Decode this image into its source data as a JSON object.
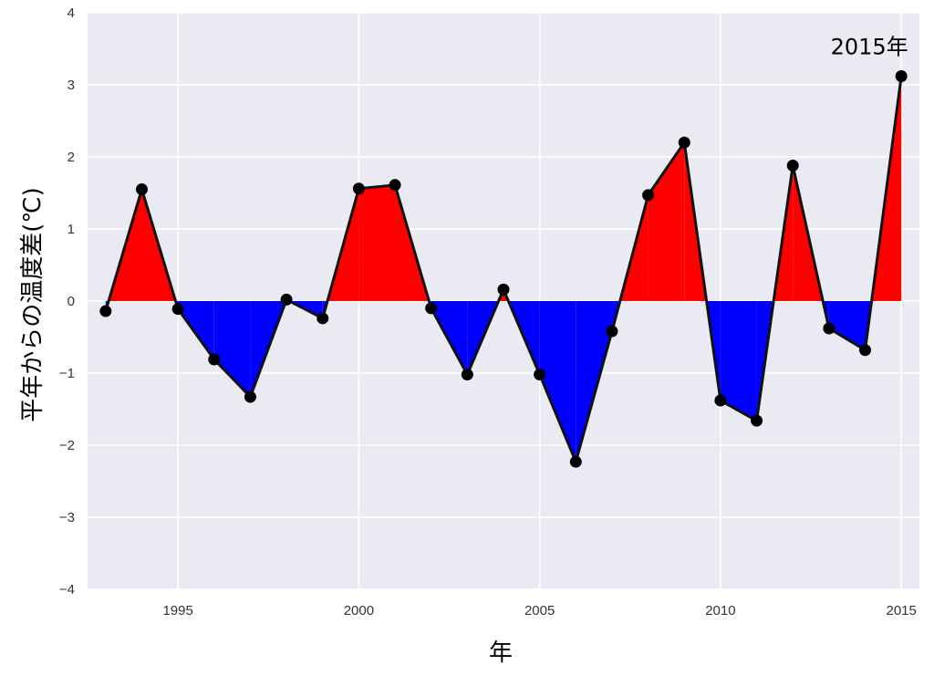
{
  "chart_data": {
    "type": "line",
    "title": "",
    "xlabel": "年",
    "ylabel": "平年からの温度差(℃)",
    "x": [
      1993,
      1994,
      1995,
      1996,
      1997,
      1998,
      1999,
      2000,
      2001,
      2002,
      2003,
      2004,
      2005,
      2006,
      2007,
      2008,
      2009,
      2010,
      2011,
      2012,
      2013,
      2014,
      2015
    ],
    "series": [
      {
        "values": [
          -0.14,
          1.55,
          -0.11,
          -0.81,
          -1.33,
          0.02,
          -0.24,
          1.56,
          1.61,
          -0.1,
          -1.02,
          0.16,
          -1.02,
          -2.23,
          -0.42,
          1.47,
          2.2,
          -1.38,
          -1.66,
          1.88,
          -0.38,
          -0.68,
          3.12
        ]
      }
    ],
    "xlim": [
      1992.5,
      2015.5
    ],
    "ylim": [
      -4,
      4
    ],
    "x_ticks": [
      1995,
      2000,
      2005,
      2010,
      2015
    ],
    "y_ticks": [
      -4,
      -3,
      -2,
      -1,
      0,
      1,
      2,
      3,
      4
    ],
    "y_tick_labels": [
      "−4",
      "−3",
      "−2",
      "−1",
      "0",
      "1",
      "2",
      "3",
      "4"
    ],
    "grid": true,
    "annotations": [
      {
        "text": "2015年",
        "x": 2015,
        "y": 3.12
      }
    ],
    "colors": {
      "background": "#EAEAF2",
      "grid": "#FFFFFF",
      "positive_fill": "#FF0000",
      "negative_fill": "#0000FF",
      "line": "#111111",
      "marker": "#000000"
    }
  }
}
